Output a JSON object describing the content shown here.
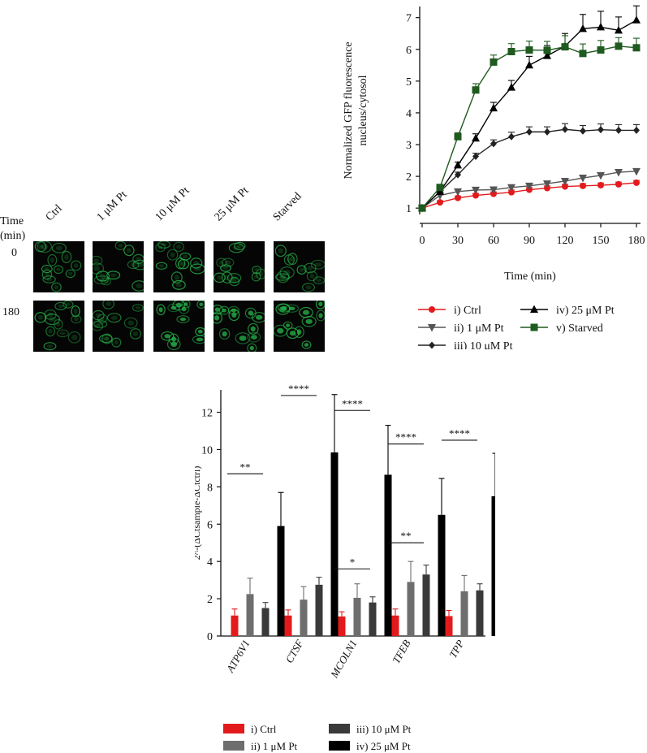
{
  "micro": {
    "row_header_label": "Time\n(min)",
    "columns": [
      "Ctrl",
      "1 μM Pt",
      "10 μM Pt",
      "25 μM Pt",
      "Starved"
    ],
    "rows": [
      "0",
      "180"
    ]
  },
  "colors": {
    "ctrl": "#e31a1c",
    "pt1": "#555555",
    "pt10": "#222222",
    "pt25": "#000000",
    "starved": "#1f5a1f",
    "bar_pt1": "#6e6e6e",
    "bar_pt10": "#3a3a3a",
    "cell_green": "#27b64a"
  },
  "chart_data": [
    {
      "type": "line",
      "title": "",
      "xlabel": "Time (min)",
      "ylabel": "Normalized GFP fluorescence\nnucleus/cytosol",
      "xlim": [
        0,
        180
      ],
      "ylim": [
        1,
        7
      ],
      "xticks": [
        0,
        30,
        60,
        90,
        120,
        150,
        180
      ],
      "yticks": [
        1,
        2,
        3,
        4,
        5,
        6,
        7
      ],
      "x": [
        0,
        15,
        30,
        45,
        60,
        75,
        90,
        105,
        120,
        135,
        150,
        165,
        180
      ],
      "series": [
        {
          "name": "i) Ctrl",
          "color": "#e31a1c",
          "marker": "circle",
          "values": [
            1.0,
            1.18,
            1.32,
            1.4,
            1.45,
            1.5,
            1.58,
            1.63,
            1.68,
            1.7,
            1.72,
            1.75,
            1.8
          ],
          "errors": [
            0.05,
            0.05,
            0.06,
            0.06,
            0.06,
            0.07,
            0.07,
            0.07,
            0.07,
            0.07,
            0.07,
            0.07,
            0.07
          ]
        },
        {
          "name": "ii) 1 μM Pt",
          "color": "#555555",
          "marker": "triangle-down",
          "values": [
            1.0,
            1.4,
            1.52,
            1.57,
            1.58,
            1.65,
            1.7,
            1.77,
            1.85,
            1.95,
            2.03,
            2.13,
            2.16
          ],
          "errors": [
            0.05,
            0.05,
            0.06,
            0.06,
            0.06,
            0.06,
            0.07,
            0.07,
            0.07,
            0.07,
            0.07,
            0.07,
            0.07
          ]
        },
        {
          "name": "iii) 10 μM Pt",
          "color": "#222222",
          "marker": "diamond",
          "values": [
            1.0,
            1.52,
            2.05,
            2.63,
            3.03,
            3.25,
            3.4,
            3.4,
            3.48,
            3.43,
            3.47,
            3.45,
            3.45
          ],
          "errors": [
            0.05,
            0.07,
            0.08,
            0.1,
            0.12,
            0.14,
            0.16,
            0.16,
            0.18,
            0.17,
            0.18,
            0.18,
            0.18
          ]
        },
        {
          "name": "iv) 25 μM Pt",
          "color": "#000000",
          "marker": "triangle-up",
          "values": [
            1.0,
            1.52,
            2.35,
            3.2,
            4.15,
            4.8,
            5.5,
            5.8,
            6.1,
            6.65,
            6.7,
            6.6,
            6.92
          ],
          "errors": [
            0.05,
            0.07,
            0.1,
            0.14,
            0.18,
            0.22,
            0.28,
            0.32,
            0.4,
            0.45,
            0.5,
            0.42,
            0.45
          ]
        },
        {
          "name": "v) Starved",
          "color": "#1f5a1f",
          "marker": "square",
          "values": [
            1.0,
            1.65,
            3.25,
            4.72,
            5.6,
            5.93,
            5.98,
            5.97,
            6.08,
            5.87,
            5.98,
            6.1,
            6.05
          ],
          "errors": [
            0.05,
            0.07,
            0.12,
            0.2,
            0.22,
            0.25,
            0.28,
            0.28,
            0.35,
            0.3,
            0.3,
            0.27,
            0.3
          ]
        }
      ]
    },
    {
      "type": "bar",
      "title": "",
      "xlabel": "",
      "ylabel": "2^-(ΔCtsample-ΔCtctrl)",
      "ylim": [
        0,
        13
      ],
      "yticks": [
        0,
        2,
        4,
        6,
        8,
        10,
        12
      ],
      "categories": [
        "ATP6V1",
        "CTSF",
        "MCOLN1",
        "TFEB",
        "TPP"
      ],
      "series": [
        {
          "name": "i) Ctrl",
          "color": "#e31a1c",
          "values": [
            1.1,
            1.1,
            1.05,
            1.1,
            1.07
          ],
          "errors": [
            0.35,
            0.3,
            0.25,
            0.35,
            0.3
          ]
        },
        {
          "name": "ii) 1 μM Pt",
          "color": "#6e6e6e",
          "values": [
            2.25,
            1.95,
            2.05,
            2.9,
            2.4
          ],
          "errors": [
            0.85,
            0.7,
            0.75,
            1.1,
            0.85
          ]
        },
        {
          "name": "iii) 10 μM Pt",
          "color": "#3a3a3a",
          "values": [
            1.5,
            2.75,
            1.8,
            3.3,
            2.45
          ],
          "errors": [
            0.3,
            0.4,
            0.3,
            0.5,
            0.35
          ]
        },
        {
          "name": "iv) 25 μM Pt",
          "color": "#000000",
          "values": [
            5.9,
            9.85,
            8.65,
            6.5,
            7.5
          ],
          "errors": [
            1.8,
            3.1,
            2.65,
            1.95,
            2.3
          ]
        }
      ],
      "significance": [
        {
          "category": "ATP6V1",
          "label": "**",
          "y": 8.7
        },
        {
          "category": "CTSF",
          "label": "****",
          "y": 12.9
        },
        {
          "category": "MCOLN1",
          "label": "****",
          "y": 12.1
        },
        {
          "category": "MCOLN1",
          "label": "*",
          "y": 3.6
        },
        {
          "category": "TFEB",
          "label": "****",
          "y": 10.3
        },
        {
          "category": "TFEB",
          "label": "**",
          "y": 5.0
        },
        {
          "category": "TPP",
          "label": "****",
          "y": 10.5
        }
      ]
    }
  ]
}
